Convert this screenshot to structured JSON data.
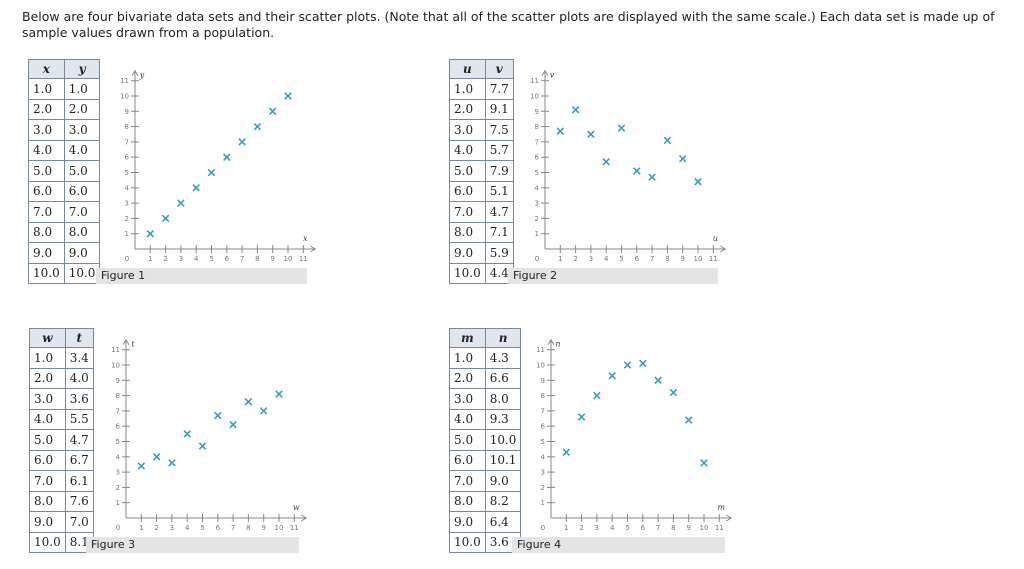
{
  "intro": "Below are four bivariate data sets and their scatter plots. (Note that all of the scatter plots are displayed with the same scale.) Each data set is made up of sample values drawn from a population.",
  "colors": {
    "marker": "#3a9dbf",
    "axis": "#888888",
    "header_bg": "#dfe6ee",
    "caption_bg": "#e2e4e6"
  },
  "chart_data": [
    {
      "type": "scatter",
      "caption": "Figure 1",
      "xlabel": "x",
      "ylabel": "y",
      "columns": [
        "x",
        "y"
      ],
      "x": [
        "1.0",
        "2.0",
        "3.0",
        "4.0",
        "5.0",
        "6.0",
        "7.0",
        "8.0",
        "9.0",
        "10.0"
      ],
      "y": [
        "1.0",
        "2.0",
        "3.0",
        "4.0",
        "5.0",
        "6.0",
        "7.0",
        "8.0",
        "9.0",
        "10.0"
      ],
      "xlim": [
        0,
        11
      ],
      "ylim": [
        0,
        11
      ],
      "xticks": [
        "1",
        "2",
        "3",
        "4",
        "5",
        "6",
        "7",
        "8",
        "9",
        "10",
        "11"
      ],
      "yticks": [
        "1",
        "2",
        "3",
        "4",
        "5",
        "6",
        "7",
        "8",
        "9",
        "10",
        "11"
      ],
      "origin": "0"
    },
    {
      "type": "scatter",
      "caption": "Figure 2",
      "xlabel": "u",
      "ylabel": "v",
      "columns": [
        "u",
        "v"
      ],
      "x": [
        "1.0",
        "2.0",
        "3.0",
        "4.0",
        "5.0",
        "6.0",
        "7.0",
        "8.0",
        "9.0",
        "10.0"
      ],
      "y": [
        "7.7",
        "9.1",
        "7.5",
        "5.7",
        "7.9",
        "5.1",
        "4.7",
        "7.1",
        "5.9",
        "4.4"
      ],
      "xlim": [
        0,
        11
      ],
      "ylim": [
        0,
        11
      ],
      "xticks": [
        "1",
        "2",
        "3",
        "4",
        "5",
        "6",
        "7",
        "8",
        "9",
        "10",
        "11"
      ],
      "yticks": [
        "1",
        "2",
        "3",
        "4",
        "5",
        "6",
        "7",
        "8",
        "9",
        "10",
        "11"
      ],
      "origin": "0"
    },
    {
      "type": "scatter",
      "caption": "Figure 3",
      "xlabel": "w",
      "ylabel": "t",
      "columns": [
        "w",
        "t"
      ],
      "x": [
        "1.0",
        "2.0",
        "3.0",
        "4.0",
        "5.0",
        "6.0",
        "7.0",
        "8.0",
        "9.0",
        "10.0"
      ],
      "y": [
        "3.4",
        "4.0",
        "3.6",
        "5.5",
        "4.7",
        "6.7",
        "6.1",
        "7.6",
        "7.0",
        "8.1"
      ],
      "xlim": [
        0,
        11
      ],
      "ylim": [
        0,
        11
      ],
      "xticks": [
        "1",
        "2",
        "3",
        "4",
        "5",
        "6",
        "7",
        "8",
        "9",
        "10",
        "11"
      ],
      "yticks": [
        "1",
        "2",
        "3",
        "4",
        "5",
        "6",
        "7",
        "8",
        "9",
        "10",
        "11"
      ],
      "origin": "0"
    },
    {
      "type": "scatter",
      "caption": "Figure 4",
      "xlabel": "m",
      "ylabel": "n",
      "columns": [
        "m",
        "n"
      ],
      "x": [
        "1.0",
        "2.0",
        "3.0",
        "4.0",
        "5.0",
        "6.0",
        "7.0",
        "8.0",
        "9.0",
        "10.0"
      ],
      "y": [
        "4.3",
        "6.6",
        "8.0",
        "9.3",
        "10.0",
        "10.1",
        "9.0",
        "8.2",
        "6.4",
        "3.6"
      ],
      "xlim": [
        0,
        11
      ],
      "ylim": [
        0,
        11
      ],
      "xticks": [
        "1",
        "2",
        "3",
        "4",
        "5",
        "6",
        "7",
        "8",
        "9",
        "10",
        "11"
      ],
      "yticks": [
        "1",
        "2",
        "3",
        "4",
        "5",
        "6",
        "7",
        "8",
        "9",
        "10",
        "11"
      ],
      "origin": "0"
    }
  ]
}
